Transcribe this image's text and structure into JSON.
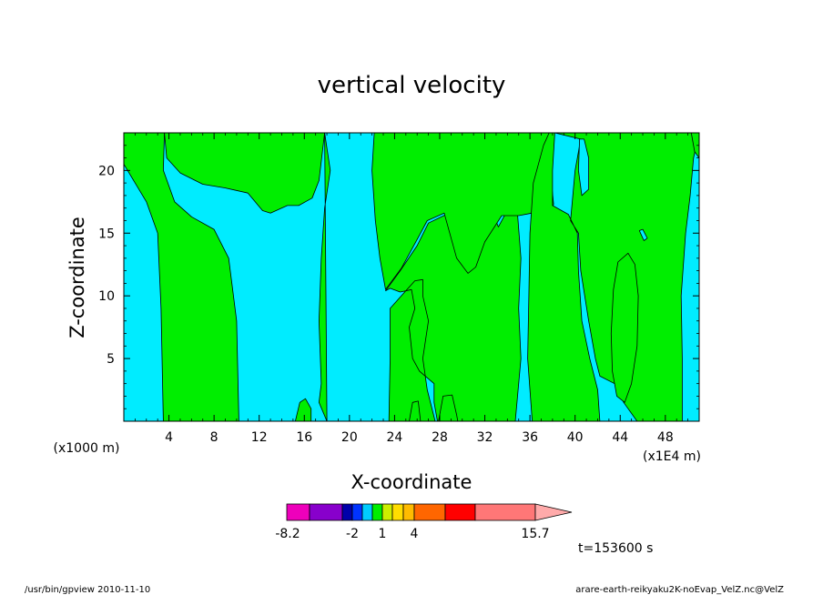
{
  "chart_data": {
    "type": "heatmap",
    "title": "vertical velocity",
    "xlabel": "X-coordinate",
    "ylabel": "Z-coordinate",
    "x_unit_left": "(x1000 m)",
    "x_unit_right": "(x1E4 m)",
    "xlim": [
      0,
      51
    ],
    "ylim": [
      0,
      23
    ],
    "x_ticks": [
      4,
      8,
      12,
      16,
      20,
      24,
      28,
      32,
      36,
      40,
      44,
      48
    ],
    "y_ticks": [
      5,
      10,
      15,
      20
    ],
    "background_color": "#00ecff",
    "regions": [
      {
        "color": "#00ee00",
        "points": [
          [
            0,
            23
          ],
          [
            3.6,
            23
          ],
          [
            3.5,
            20
          ],
          [
            4.5,
            17.5
          ],
          [
            6,
            16.3
          ],
          [
            8,
            15.3
          ],
          [
            9.3,
            13
          ],
          [
            10,
            8
          ],
          [
            10.2,
            0
          ],
          [
            3.5,
            0
          ],
          [
            3.3,
            9
          ],
          [
            3,
            15
          ],
          [
            2,
            17.5
          ],
          [
            0,
            20.5
          ]
        ]
      },
      {
        "color": "#00ee00",
        "points": [
          [
            3.6,
            23
          ],
          [
            3.8,
            21
          ],
          [
            5,
            19.8
          ],
          [
            7,
            18.9
          ],
          [
            9,
            18.6
          ],
          [
            11,
            18.2
          ],
          [
            12.3,
            16.8
          ],
          [
            13,
            16.6
          ],
          [
            14.5,
            17.2
          ],
          [
            15.5,
            17.2
          ],
          [
            16.7,
            17.8
          ],
          [
            17.3,
            19.2
          ],
          [
            17.8,
            23
          ]
        ]
      },
      {
        "color": "#00ee00",
        "points": [
          [
            17.8,
            23
          ],
          [
            18.3,
            20
          ],
          [
            17.8,
            17
          ],
          [
            17.5,
            13
          ],
          [
            17.3,
            8
          ],
          [
            17.5,
            3
          ],
          [
            17.3,
            1.5
          ],
          [
            18,
            0
          ],
          [
            23.5,
            0
          ],
          [
            23.6,
            5
          ],
          [
            23.6,
            9
          ],
          [
            24.4,
            9.8
          ],
          [
            24.8,
            10.2
          ],
          [
            25.8,
            11.2
          ],
          [
            26.5,
            11.3
          ],
          [
            26.5,
            10
          ],
          [
            27,
            8
          ],
          [
            26.5,
            5
          ],
          [
            26.9,
            2.5
          ],
          [
            27.6,
            0
          ],
          [
            27.8,
            0
          ],
          [
            27.5,
            1.5
          ],
          [
            27.5,
            3
          ],
          [
            26.2,
            4
          ],
          [
            25.6,
            5
          ],
          [
            25.3,
            7.5
          ],
          [
            25.8,
            9
          ],
          [
            25.5,
            10.5
          ],
          [
            24.5,
            10.3
          ],
          [
            23.6,
            10.6
          ],
          [
            23.2,
            10.4
          ],
          [
            24.5,
            12
          ],
          [
            26,
            14
          ],
          [
            27,
            15.8
          ],
          [
            28.6,
            16.5
          ],
          [
            30.5,
            16
          ],
          [
            32.2,
            16.3
          ],
          [
            32.8,
            16.4
          ],
          [
            33.2,
            15.5
          ],
          [
            33.8,
            16.5
          ],
          [
            34.9,
            16.5
          ],
          [
            35.2,
            13
          ],
          [
            35,
            9
          ],
          [
            35.2,
            5
          ],
          [
            34.7,
            0
          ],
          [
            18,
            0
          ]
        ]
      },
      {
        "color": "#00ee00",
        "points": [
          [
            22.2,
            23
          ],
          [
            22,
            20
          ],
          [
            22.3,
            16
          ],
          [
            22.7,
            13
          ],
          [
            23.2,
            10.5
          ],
          [
            24.6,
            12.2
          ],
          [
            26,
            14.5
          ],
          [
            26.9,
            16
          ],
          [
            28.4,
            16.6
          ],
          [
            29.5,
            13
          ],
          [
            30.5,
            11.8
          ],
          [
            31.2,
            12.3
          ],
          [
            32,
            14.3
          ],
          [
            33.5,
            16.4
          ],
          [
            35,
            16.4
          ],
          [
            36.2,
            16.6
          ],
          [
            38,
            17.1
          ],
          [
            38.1,
            17.3
          ],
          [
            37.8,
            20
          ],
          [
            37.7,
            23
          ]
        ]
      },
      {
        "color": "#00ee00",
        "points": [
          [
            36.2,
            0
          ],
          [
            35.8,
            5
          ],
          [
            35.9,
            10
          ],
          [
            36,
            15
          ],
          [
            36.3,
            19
          ],
          [
            37.2,
            22
          ],
          [
            37.7,
            23
          ],
          [
            51,
            23
          ],
          [
            50.5,
            21
          ],
          [
            50.2,
            18
          ],
          [
            49.8,
            15
          ],
          [
            49.4,
            10
          ],
          [
            49.5,
            5
          ],
          [
            49.5,
            0
          ],
          [
            45.5,
            0
          ],
          [
            44.3,
            1.5
          ],
          [
            43.5,
            3
          ],
          [
            42.2,
            3.6
          ],
          [
            41.8,
            5
          ],
          [
            41.2,
            8
          ],
          [
            40.5,
            12
          ],
          [
            40.3,
            15
          ],
          [
            39.6,
            16
          ],
          [
            39.8,
            18
          ],
          [
            40,
            20
          ],
          [
            40.5,
            22.5
          ],
          [
            38.2,
            23
          ],
          [
            38,
            20
          ],
          [
            38,
            17.2
          ],
          [
            39.4,
            16.5
          ],
          [
            40.2,
            15
          ],
          [
            40.3,
            12
          ],
          [
            40.6,
            8
          ],
          [
            41.3,
            5
          ],
          [
            42,
            2.5
          ],
          [
            42.2,
            0
          ]
        ]
      },
      {
        "color": "#00ee00",
        "points": [
          [
            15.2,
            0
          ],
          [
            15.6,
            1.5
          ],
          [
            16.1,
            1.8
          ],
          [
            16.6,
            1
          ],
          [
            16.6,
            0
          ]
        ]
      },
      {
        "color": "#00ee00",
        "points": [
          [
            25.3,
            0
          ],
          [
            25.6,
            1.5
          ],
          [
            26.1,
            1.6
          ],
          [
            26.3,
            0
          ]
        ]
      },
      {
        "color": "#00ee00",
        "points": [
          [
            27.9,
            0
          ],
          [
            28.3,
            2
          ],
          [
            29.1,
            2.1
          ],
          [
            29.5,
            0.5
          ],
          [
            29.6,
            0
          ]
        ]
      },
      {
        "color": "#00ee00",
        "points": [
          [
            43.2,
            7
          ],
          [
            43.4,
            10.5
          ],
          [
            43.8,
            12.7
          ],
          [
            44.7,
            13.4
          ],
          [
            45.3,
            12.5
          ],
          [
            45.6,
            10
          ],
          [
            45.5,
            6
          ],
          [
            45,
            3
          ],
          [
            44.4,
            1.5
          ],
          [
            43.7,
            2
          ],
          [
            43.3,
            4
          ]
        ]
      },
      {
        "color": "#00ee00",
        "points": [
          [
            50.3,
            23
          ],
          [
            50.6,
            21.5
          ],
          [
            51,
            21
          ],
          [
            51,
            23
          ]
        ]
      },
      {
        "color": "#00ecff",
        "points": [
          [
            40.4,
            22.5
          ],
          [
            40.3,
            20
          ],
          [
            40.6,
            18
          ],
          [
            41.2,
            18.5
          ],
          [
            41.2,
            21
          ],
          [
            40.8,
            22.5
          ]
        ]
      },
      {
        "color": "#00ecff",
        "points": [
          [
            45.7,
            15.2
          ],
          [
            46.1,
            14.4
          ],
          [
            46.4,
            14.6
          ],
          [
            46,
            15.3
          ]
        ]
      }
    ],
    "colorbar": {
      "colors": [
        "#ee00bb",
        "#8800cc",
        "#0000aa",
        "#0033ff",
        "#00ccff",
        "#00ee00",
        "#ccee00",
        "#ffdd00",
        "#ffbb00",
        "#ff6600",
        "#ff0000",
        "#ff7777",
        "#ffaaaa"
      ],
      "labels": [
        "-8.2",
        "-2",
        "1",
        "4",
        "15.7"
      ]
    },
    "time_label": "t=153600 s"
  },
  "footer": {
    "left": "/usr/bin/gpview   2010-11-10",
    "right": "arare-earth-reikyaku2K-noEvap_VelZ.nc@VelZ"
  }
}
